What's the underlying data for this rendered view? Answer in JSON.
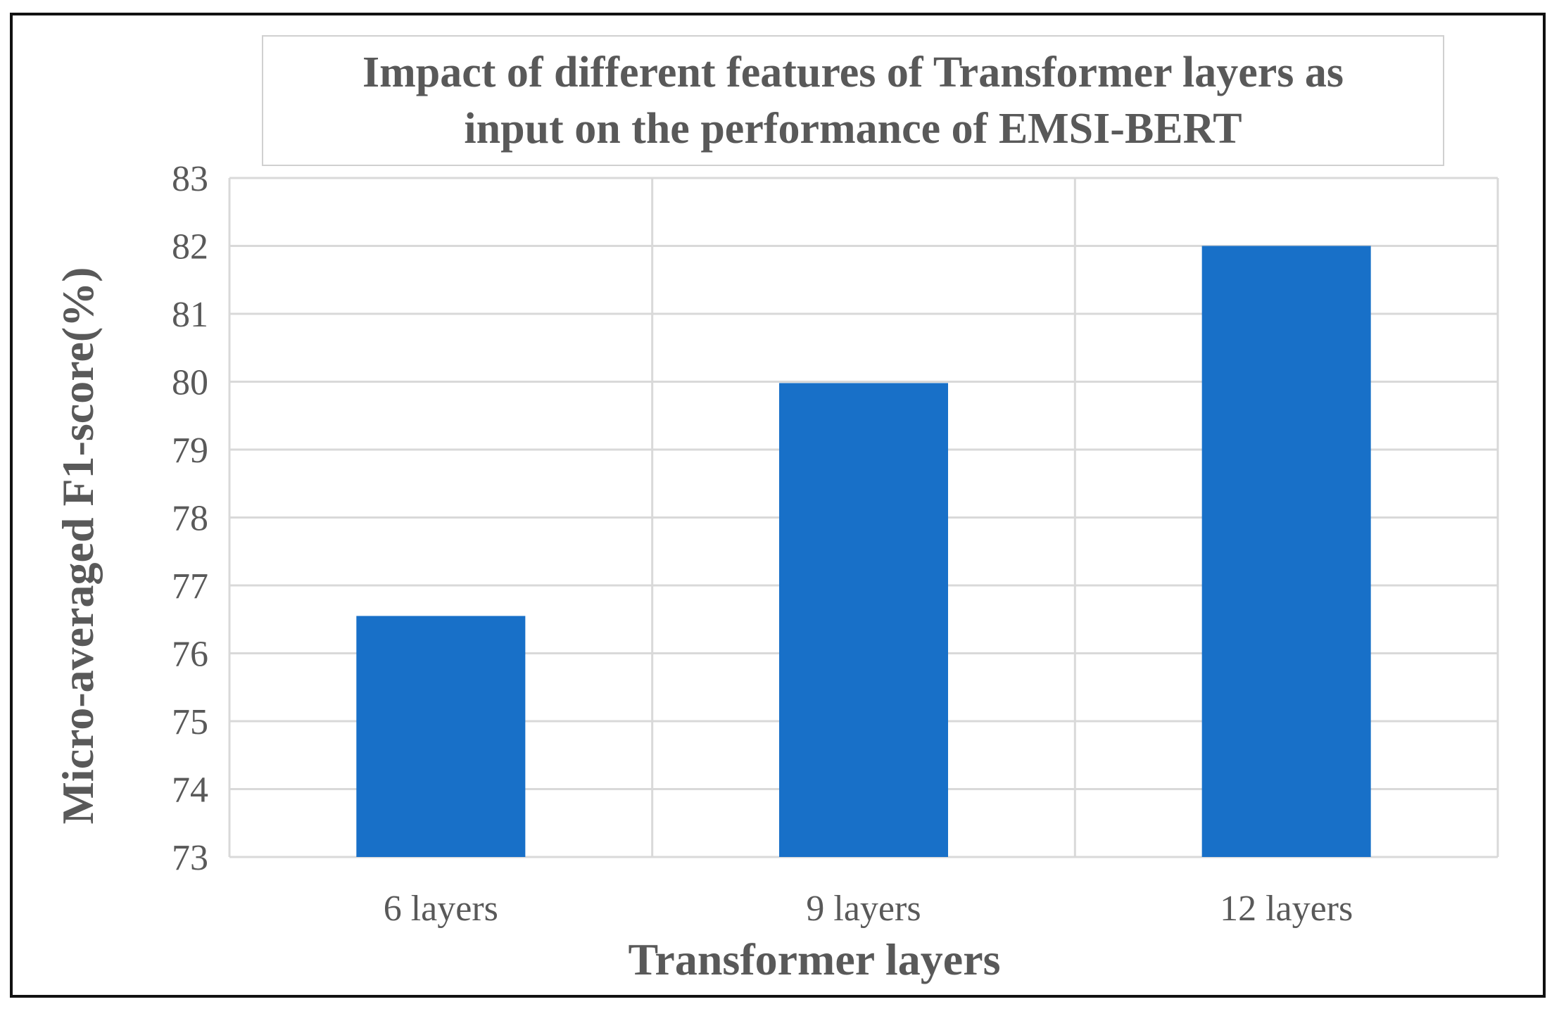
{
  "chart_data": {
    "type": "bar",
    "title": "Impact of different features of Transformer layers as\ninput on the performance of EMSI-BERT",
    "xlabel": "Transformer layers",
    "ylabel": "Micro-averaged F1-score(%)",
    "categories": [
      "6 layers",
      "9 layers",
      "12 layers"
    ],
    "values": [
      76.55,
      79.98,
      82.0
    ],
    "ylim": [
      73,
      83
    ],
    "yticks": [
      73,
      74,
      75,
      76,
      77,
      78,
      79,
      80,
      81,
      82,
      83
    ],
    "grid": true,
    "legend": "none",
    "bar_color": "#1870C8",
    "grid_color": "#D9D9D9"
  }
}
